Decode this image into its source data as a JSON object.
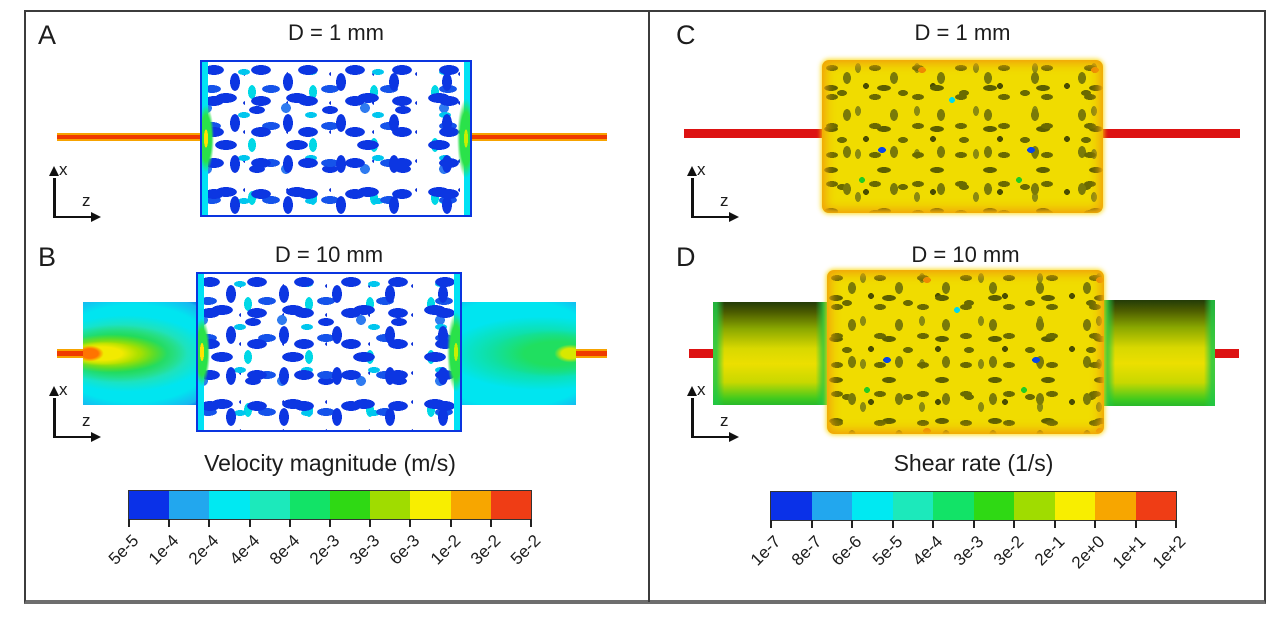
{
  "figure": {
    "background": "#ffffff",
    "frame_color": "#3c3c3c"
  },
  "axes_legend": {
    "x": "x",
    "z": "z"
  },
  "panels": [
    {
      "label": "A",
      "title": "D = 1 mm",
      "field": "velocity"
    },
    {
      "label": "B",
      "title": "D = 10 mm",
      "field": "velocity"
    },
    {
      "label": "C",
      "title": "D = 1 mm",
      "field": "shear"
    },
    {
      "label": "D",
      "title": "D = 10 mm",
      "field": "shear"
    }
  ],
  "colorbars": [
    {
      "title": "Velocity magnitude (m/s)",
      "ticks": [
        "5e-5",
        "1e-4",
        "2e-4",
        "4e-4",
        "8e-4",
        "2e-3",
        "3e-3",
        "6e-3",
        "1e-2",
        "3e-2",
        "5e-2"
      ],
      "colors": [
        "#0a31e8",
        "#22a7ee",
        "#00e9f2",
        "#1ce9bb",
        "#12e367",
        "#2fd914",
        "#a0dc00",
        "#f8ee00",
        "#f7a600",
        "#ef3d15"
      ]
    },
    {
      "title": "Shear rate (1/s)",
      "ticks": [
        "1e-7",
        "8e-7",
        "6e-6",
        "5e-5",
        "4e-4",
        "3e-3",
        "3e-2",
        "2e-1",
        "2e+0",
        "1e+1",
        "1e+2"
      ],
      "colors": [
        "#0a31e8",
        "#22a7ee",
        "#00e9f2",
        "#1ce9bb",
        "#12e367",
        "#2fd914",
        "#a0dc00",
        "#f8ee00",
        "#f7a600",
        "#ef3d15"
      ]
    }
  ],
  "chart_data": [
    {
      "type": "heatmap",
      "title": "Velocity magnitude (m/s)",
      "panels": [
        {
          "label": "A",
          "condition": "D = 1 mm"
        },
        {
          "label": "B",
          "condition": "D = 10 mm"
        }
      ],
      "scale": "discrete logarithmic colormap, blue (low) to red (high)",
      "tick_labels": [
        "5e-5",
        "1e-4",
        "2e-4",
        "4e-4",
        "8e-4",
        "2e-3",
        "3e-3",
        "6e-3",
        "1e-2",
        "3e-2",
        "5e-2"
      ],
      "colors": [
        "#0a31e8",
        "#22a7ee",
        "#00e9f2",
        "#1ce9bb",
        "#12e367",
        "#2fd914",
        "#a0dc00",
        "#f8ee00",
        "#f7a600",
        "#ef3d15"
      ],
      "axis_labels": {
        "vertical": "x",
        "horizontal": "z"
      },
      "legend_position": "bottom"
    },
    {
      "type": "heatmap",
      "title": "Shear rate (1/s)",
      "panels": [
        {
          "label": "C",
          "condition": "D = 1 mm"
        },
        {
          "label": "D",
          "condition": "D = 10 mm"
        }
      ],
      "scale": "discrete logarithmic colormap, blue (low) to red (high)",
      "tick_labels": [
        "1e-7",
        "8e-7",
        "6e-6",
        "5e-5",
        "4e-4",
        "3e-3",
        "3e-2",
        "2e-1",
        "2e+0",
        "1e+1",
        "1e+2"
      ],
      "colors": [
        "#0a31e8",
        "#22a7ee",
        "#00e9f2",
        "#1ce9bb",
        "#12e367",
        "#2fd914",
        "#a0dc00",
        "#f8ee00",
        "#f7a600",
        "#ef3d15"
      ],
      "axis_labels": {
        "vertical": "x",
        "horizontal": "z"
      },
      "legend_position": "bottom"
    }
  ]
}
